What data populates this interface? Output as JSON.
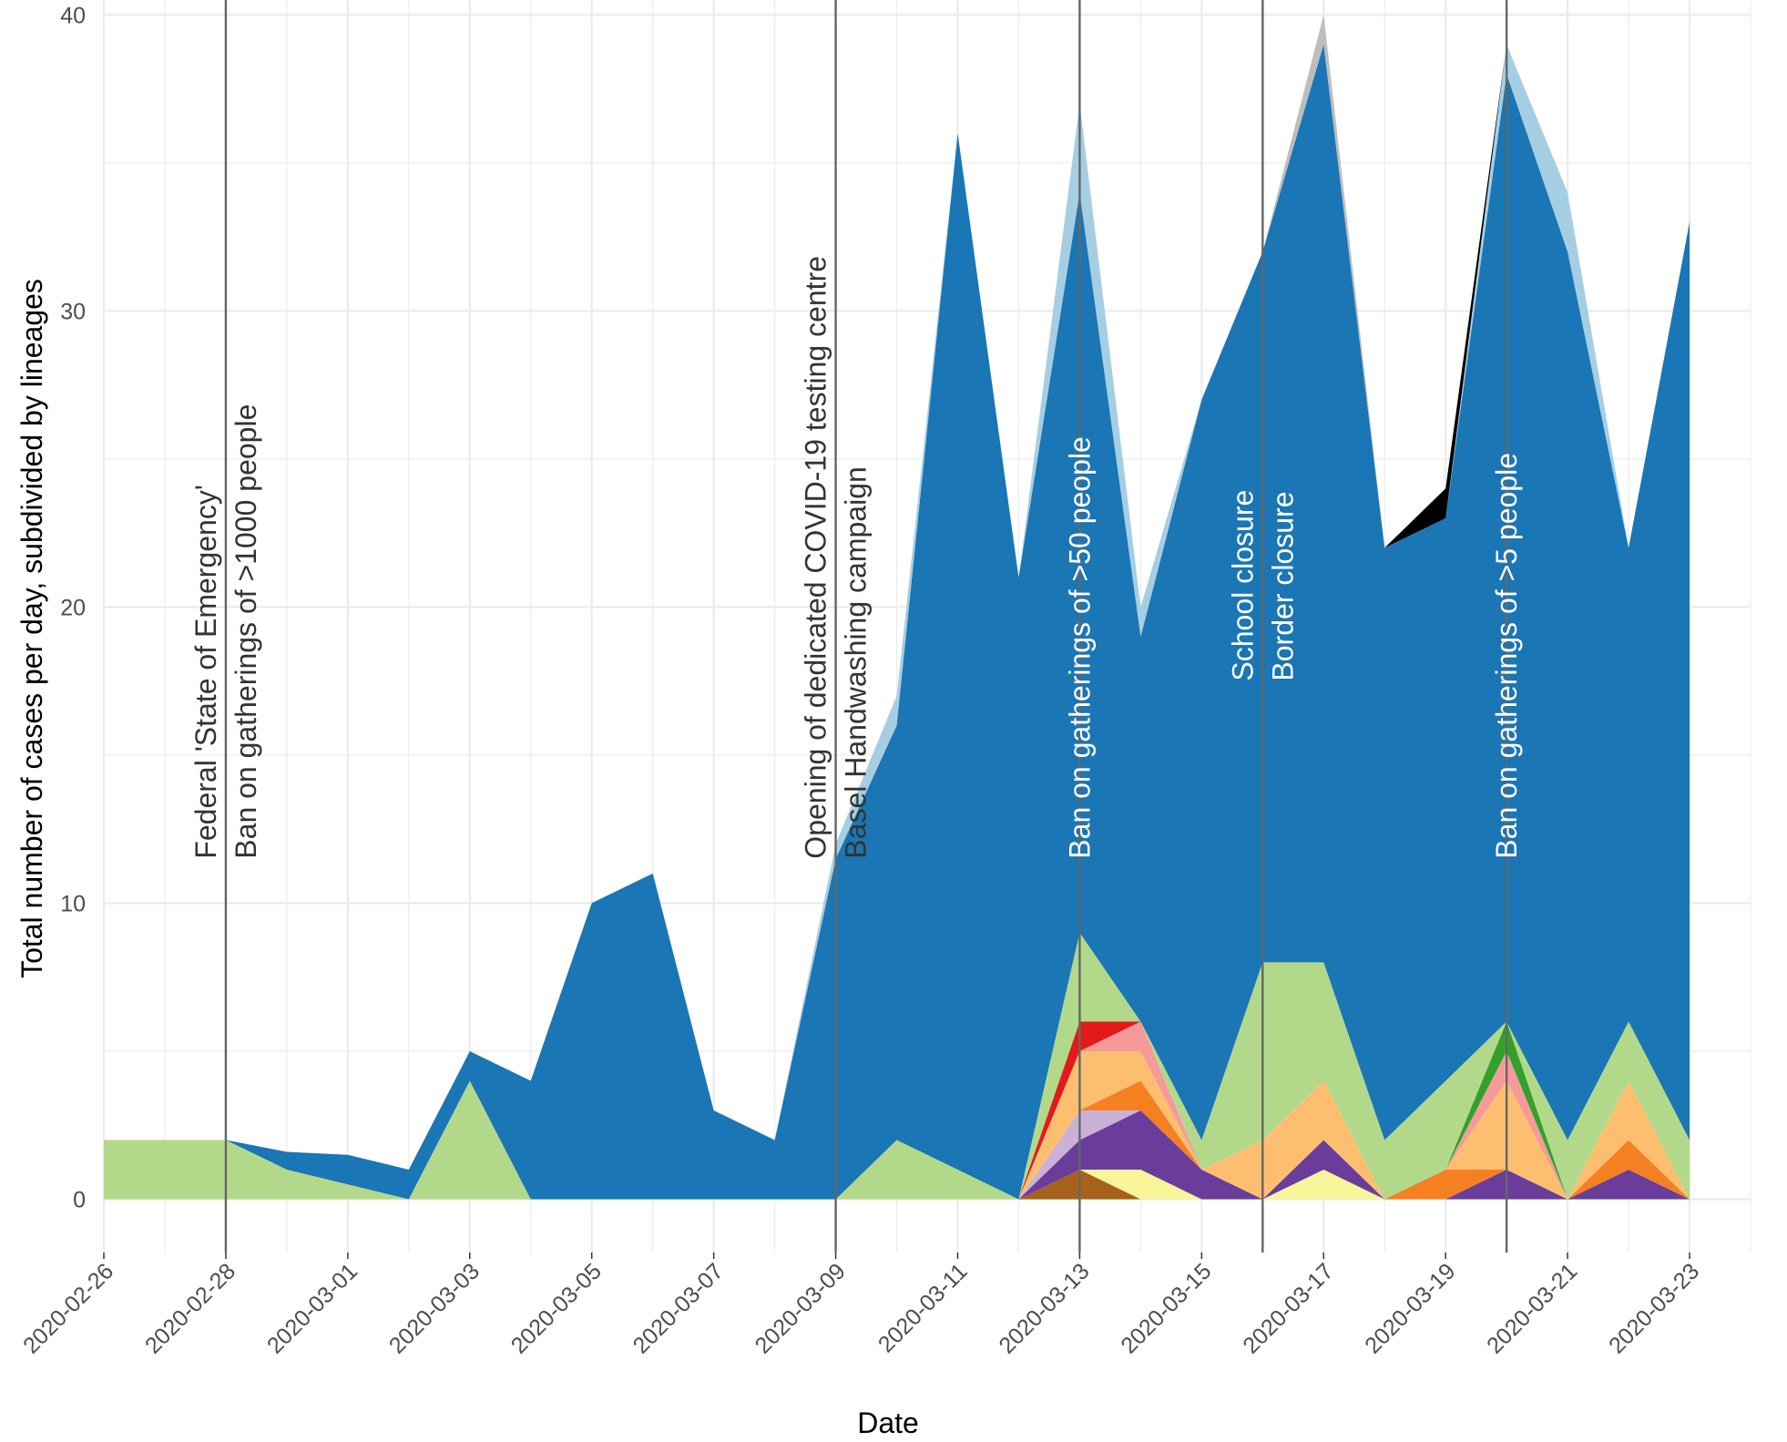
{
  "chart_data": {
    "type": "area",
    "stacked": true,
    "title": "",
    "xlabel": "Date",
    "ylabel": "Total number of cases per day, subdivided by lineages",
    "x": [
      "2020-02-26",
      "2020-02-27",
      "2020-02-28",
      "2020-02-29",
      "2020-03-01",
      "2020-03-02",
      "2020-03-03",
      "2020-03-04",
      "2020-03-05",
      "2020-03-06",
      "2020-03-07",
      "2020-03-08",
      "2020-03-09",
      "2020-03-10",
      "2020-03-11",
      "2020-03-12",
      "2020-03-13",
      "2020-03-14",
      "2020-03-15",
      "2020-03-16",
      "2020-03-17",
      "2020-03-18",
      "2020-03-19",
      "2020-03-20",
      "2020-03-21",
      "2020-03-22",
      "2020-03-23"
    ],
    "xlim": [
      "2020-02-26",
      "2020-03-24"
    ],
    "x_tick_labels": [
      "2020-02-26",
      "2020-02-28",
      "2020-03-01",
      "2020-03-03",
      "2020-03-05",
      "2020-03-07",
      "2020-03-09",
      "2020-03-11",
      "2020-03-13",
      "2020-03-15",
      "2020-03-17",
      "2020-03-19",
      "2020-03-21",
      "2020-03-23"
    ],
    "ylim": [
      -1.8,
      40.5
    ],
    "y_ticks": [
      0,
      10,
      20,
      30,
      40
    ],
    "grid": true,
    "legend": "none",
    "series": [
      {
        "color": "#a6611a",
        "values": [
          0,
          0,
          0,
          0,
          0,
          0,
          0,
          0,
          0,
          0,
          0,
          0,
          0,
          0,
          0,
          0,
          1,
          0,
          0,
          0,
          0,
          0,
          0,
          0,
          0,
          0,
          0
        ]
      },
      {
        "color": "#f7f49a",
        "values": [
          0,
          0,
          0,
          0,
          0,
          0,
          0,
          0,
          0,
          0,
          0,
          0,
          0,
          0,
          0,
          0,
          0,
          1,
          0,
          0,
          1,
          0,
          0,
          0,
          0,
          0,
          0
        ]
      },
      {
        "color": "#6a3d9a",
        "values": [
          0,
          0,
          0,
          0,
          0,
          0,
          0,
          0,
          0,
          0,
          0,
          0,
          0,
          0,
          0,
          0,
          1,
          2,
          1,
          0,
          1,
          0,
          0,
          1,
          0,
          1,
          0
        ]
      },
      {
        "color": "#cab2d6",
        "values": [
          0,
          0,
          0,
          0,
          0,
          0,
          0,
          0,
          0,
          0,
          0,
          0,
          0,
          0,
          0,
          0,
          1,
          0,
          0,
          0,
          0,
          0,
          0,
          0,
          0,
          0,
          0
        ]
      },
      {
        "color": "#f58022",
        "values": [
          0,
          0,
          0,
          0,
          0,
          0,
          0,
          0,
          0,
          0,
          0,
          0,
          0,
          0,
          0,
          0,
          0,
          1,
          0,
          0,
          0,
          0,
          1,
          0,
          0,
          1,
          0
        ]
      },
      {
        "color": "#fdbf6f",
        "values": [
          0,
          0,
          0,
          0,
          0,
          0,
          0,
          0,
          0,
          0,
          0,
          0,
          0,
          0,
          0,
          0,
          2,
          1,
          0,
          2,
          2,
          0,
          0,
          3,
          0,
          2,
          0
        ]
      },
      {
        "color": "#f69a99",
        "values": [
          0,
          0,
          0,
          0,
          0,
          0,
          0,
          0,
          0,
          0,
          0,
          0,
          0,
          0,
          0,
          0,
          0,
          1,
          0,
          0,
          0,
          0,
          0,
          1,
          0,
          0,
          0
        ]
      },
      {
        "color": "#e31a1c",
        "values": [
          0,
          0,
          0,
          0,
          0,
          0,
          0,
          0,
          0,
          0,
          0,
          0,
          0,
          0,
          0,
          0,
          1,
          0,
          0,
          0,
          0,
          0,
          0,
          0,
          0,
          0,
          0
        ]
      },
      {
        "color": "#33a02c",
        "values": [
          0,
          0,
          0,
          0,
          0,
          0,
          0,
          0,
          0,
          0,
          0,
          0,
          0,
          0,
          0,
          0,
          0,
          0,
          0,
          0,
          0,
          0,
          0,
          1,
          0,
          0,
          0
        ]
      },
      {
        "color": "#b2d98a",
        "values": [
          2,
          2,
          2,
          1,
          0.5,
          0,
          4,
          0,
          0,
          0,
          0,
          0,
          0,
          2,
          1,
          0,
          3,
          0,
          1,
          6,
          4,
          2,
          3,
          0,
          2,
          2,
          2
        ]
      },
      {
        "color": "#1a76b4",
        "values": [
          0,
          0,
          0,
          0.6,
          1,
          1,
          1,
          4,
          10,
          11,
          3,
          2,
          11.5,
          14,
          35,
          21,
          25,
          13,
          25,
          24,
          31,
          20,
          19,
          32,
          30,
          16,
          31
        ]
      },
      {
        "color": "#a6cee3",
        "values": [
          0,
          0,
          0,
          0,
          0,
          0,
          0,
          0,
          0,
          0,
          0,
          0,
          0.5,
          1,
          0,
          0,
          3,
          1,
          0,
          0,
          0,
          0,
          0,
          1,
          2,
          0,
          0
        ]
      },
      {
        "color": "#000000",
        "values": [
          0,
          0,
          0,
          0,
          0,
          0,
          0,
          0,
          0,
          0,
          0,
          0,
          0,
          0,
          0,
          0,
          0,
          0,
          0,
          0,
          0,
          0,
          1,
          0,
          0,
          0,
          0
        ]
      },
      {
        "color": "#bdbdbd",
        "values": [
          0,
          0,
          0,
          0,
          0,
          0,
          0,
          0,
          0,
          0,
          0,
          0,
          0,
          0,
          0,
          0,
          0,
          0,
          0,
          0,
          1,
          0,
          0,
          0,
          0,
          0,
          0
        ]
      }
    ],
    "events": [
      {
        "date": "2020-02-28",
        "lines": [
          "Federal 'State of Emergency'",
          "Ban on gatherings of >1000 people"
        ],
        "text_color": "#333333",
        "anchor_y": 11.5
      },
      {
        "date": "2020-03-09",
        "lines": [
          "Opening of dedicated COVID-19 testing centre",
          "Basel Handwashing campaign"
        ],
        "text_color": "#333333",
        "anchor_y": 11.5
      },
      {
        "date": "2020-03-13",
        "lines": [
          "Ban on gatherings of >50 people"
        ],
        "text_color": "#ffffff",
        "anchor_y": 11.5
      },
      {
        "date": "2020-03-16",
        "lines": [
          "School closure",
          "Border closure"
        ],
        "text_color": "#ffffff",
        "anchor_y": 17.5
      },
      {
        "date": "2020-03-20",
        "lines": [
          "Ban on gatherings of >5 people"
        ],
        "text_color": "#ffffff",
        "anchor_y": 11.5
      }
    ]
  }
}
